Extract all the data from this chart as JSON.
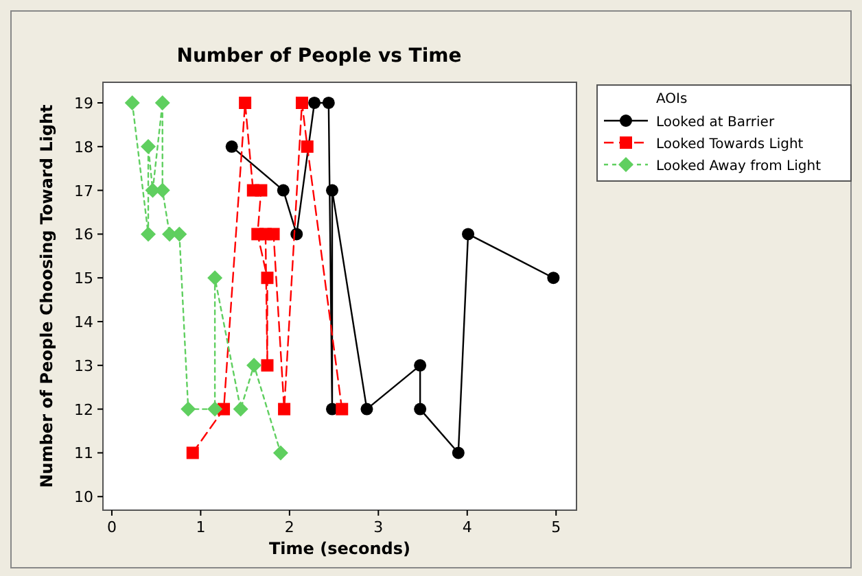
{
  "chart_data": {
    "type": "line",
    "title": "Number of People vs Time",
    "xlabel": "Time (seconds)",
    "ylabel": "Number of People Choosing Toward Light",
    "legend_title": "AOIs",
    "legend": "top right",
    "xlim": [
      -0.1,
      5.23
    ],
    "xticks": [
      0,
      1,
      2,
      3,
      4,
      5
    ],
    "ylim": [
      9.69,
      19.47
    ],
    "yticks": [
      10,
      11,
      12,
      13,
      14,
      15,
      16,
      17,
      18,
      19
    ],
    "grid": false,
    "series": [
      {
        "name": "Looked at Barrier",
        "color": "#000000",
        "marker": "circle",
        "line_style": "solid",
        "x": [
          1.35,
          1.93,
          2.08,
          2.28,
          2.44,
          2.48,
          2.48,
          2.87,
          3.47,
          3.47,
          3.9,
          4.01,
          4.97
        ],
        "values": [
          18,
          17,
          16,
          19,
          19,
          12,
          17,
          12,
          13,
          12,
          11,
          16,
          15
        ]
      },
      {
        "name": "Looked Towards Light",
        "color": "#ff0000",
        "marker": "square",
        "line_style": "dashed",
        "x": [
          0.91,
          1.26,
          1.5,
          1.59,
          1.68,
          1.64,
          1.75,
          1.75,
          1.73,
          1.82,
          1.94,
          2.14,
          2.2,
          2.59
        ],
        "values": [
          11,
          12,
          19,
          17,
          17,
          16,
          15,
          13,
          16,
          16,
          12,
          19,
          18,
          12
        ]
      },
      {
        "name": "Looked Away from Light",
        "color": "#5fcf5f",
        "marker": "diamond",
        "line_style": "dotted",
        "x": [
          0.23,
          0.41,
          0.41,
          0.46,
          0.57,
          0.57,
          0.65,
          0.76,
          0.86,
          1.16,
          1.16,
          1.45,
          1.6,
          1.9
        ],
        "values": [
          19,
          16,
          18,
          17,
          19,
          17,
          16,
          16,
          12,
          12,
          15,
          12,
          13,
          11
        ]
      }
    ]
  }
}
